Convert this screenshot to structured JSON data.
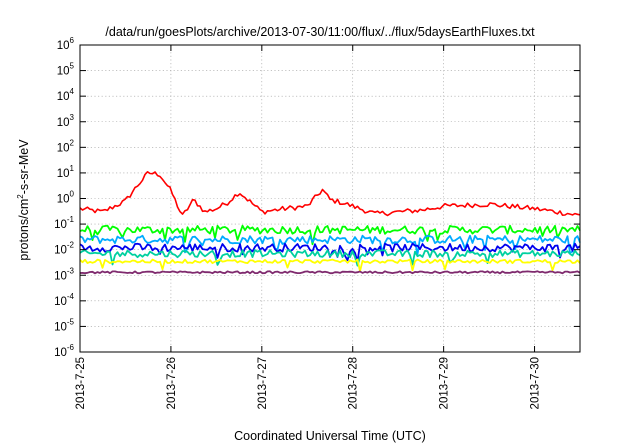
{
  "chart_data": {
    "type": "line",
    "title": "/data/run/goesPlots/archive/2013-07-30/11:00/flux/../flux/5daysEarthFluxes.txt",
    "xlabel": "Coordinated Universal Time (UTC)",
    "ylabel": {
      "pre": "protons/cm",
      "sup": "2",
      "post": "-s-sr-MeV"
    },
    "y_scale": "log",
    "ylim": [
      1e-06,
      1000000.0
    ],
    "y_ticks": [
      {
        "value": 1e-06,
        "base": "10",
        "exp": "-6"
      },
      {
        "value": 1e-05,
        "base": "10",
        "exp": "-5"
      },
      {
        "value": 0.0001,
        "base": "10",
        "exp": "-4"
      },
      {
        "value": 0.001,
        "base": "10",
        "exp": "-3"
      },
      {
        "value": 0.01,
        "base": "10",
        "exp": "-2"
      },
      {
        "value": 0.1,
        "base": "10",
        "exp": "-1"
      },
      {
        "value": 1.0,
        "base": "10",
        "exp": "0"
      },
      {
        "value": 10.0,
        "base": "10",
        "exp": "1"
      },
      {
        "value": 100.0,
        "base": "10",
        "exp": "2"
      },
      {
        "value": 1000.0,
        "base": "10",
        "exp": "3"
      },
      {
        "value": 10000.0,
        "base": "10",
        "exp": "4"
      },
      {
        "value": 100000.0,
        "base": "10",
        "exp": "5"
      },
      {
        "value": 1000000.0,
        "base": "10",
        "exp": "6"
      }
    ],
    "xlim": [
      "2013-07-25T00:00",
      "2013-07-30T12:00"
    ],
    "x_ticks": [
      "2013-7-25",
      "2013-7-26",
      "2013-7-27",
      "2013-7-28",
      "2013-7-29",
      "2013-7-30"
    ],
    "grid": true,
    "series": [
      {
        "color": "#ff0000",
        "x": [
          "2013-07-25T00:00",
          "2013-07-25T06:00",
          "2013-07-25T12:00",
          "2013-07-25T15:00",
          "2013-07-25T18:00",
          "2013-07-25T21:00",
          "2013-07-26T00:00",
          "2013-07-26T03:00",
          "2013-07-26T06:00",
          "2013-07-26T09:00",
          "2013-07-26T12:00",
          "2013-07-26T15:00",
          "2013-07-26T18:00",
          "2013-07-27T00:00",
          "2013-07-27T06:00",
          "2013-07-27T12:00",
          "2013-07-27T16:00",
          "2013-07-27T18:00",
          "2013-07-27T21:00",
          "2013-07-28T00:00",
          "2013-07-28T06:00",
          "2013-07-28T12:00",
          "2013-07-28T18:00",
          "2013-07-29T00:00",
          "2013-07-29T12:00",
          "2013-07-30T00:00",
          "2013-07-30T12:00"
        ],
        "values": [
          0.4,
          0.3,
          0.8,
          3,
          10,
          9,
          2,
          0.2,
          0.9,
          0.3,
          0.4,
          0.7,
          1.8,
          0.3,
          0.4,
          0.5,
          2.2,
          0.9,
          0.7,
          0.5,
          0.25,
          0.3,
          0.35,
          0.5,
          0.6,
          0.4,
          0.22
        ]
      },
      {
        "color": "#00ff00",
        "x": [
          "2013-07-25T00:00",
          "2013-07-30T12:00"
        ],
        "values": [
          0.06,
          0.06
        ]
      },
      {
        "color": "#00aaff",
        "x": [
          "2013-07-25T00:00",
          "2013-07-30T12:00"
        ],
        "values": [
          0.025,
          0.025
        ]
      },
      {
        "color": "#0000ee",
        "x": [
          "2013-07-25T00:00",
          "2013-07-30T12:00"
        ],
        "values": [
          0.012,
          0.012
        ]
      },
      {
        "color": "#00d0a0",
        "x": [
          "2013-07-25T00:00",
          "2013-07-30T12:00"
        ],
        "values": [
          0.007,
          0.007
        ]
      },
      {
        "color": "#ffff00",
        "x": [
          "2013-07-25T00:00",
          "2013-07-30T12:00"
        ],
        "values": [
          0.0035,
          0.0035
        ]
      },
      {
        "color": "#7f2a6e",
        "x": [
          "2013-07-25T00:00",
          "2013-07-30T12:00"
        ],
        "values": [
          0.0013,
          0.0013
        ]
      }
    ]
  }
}
